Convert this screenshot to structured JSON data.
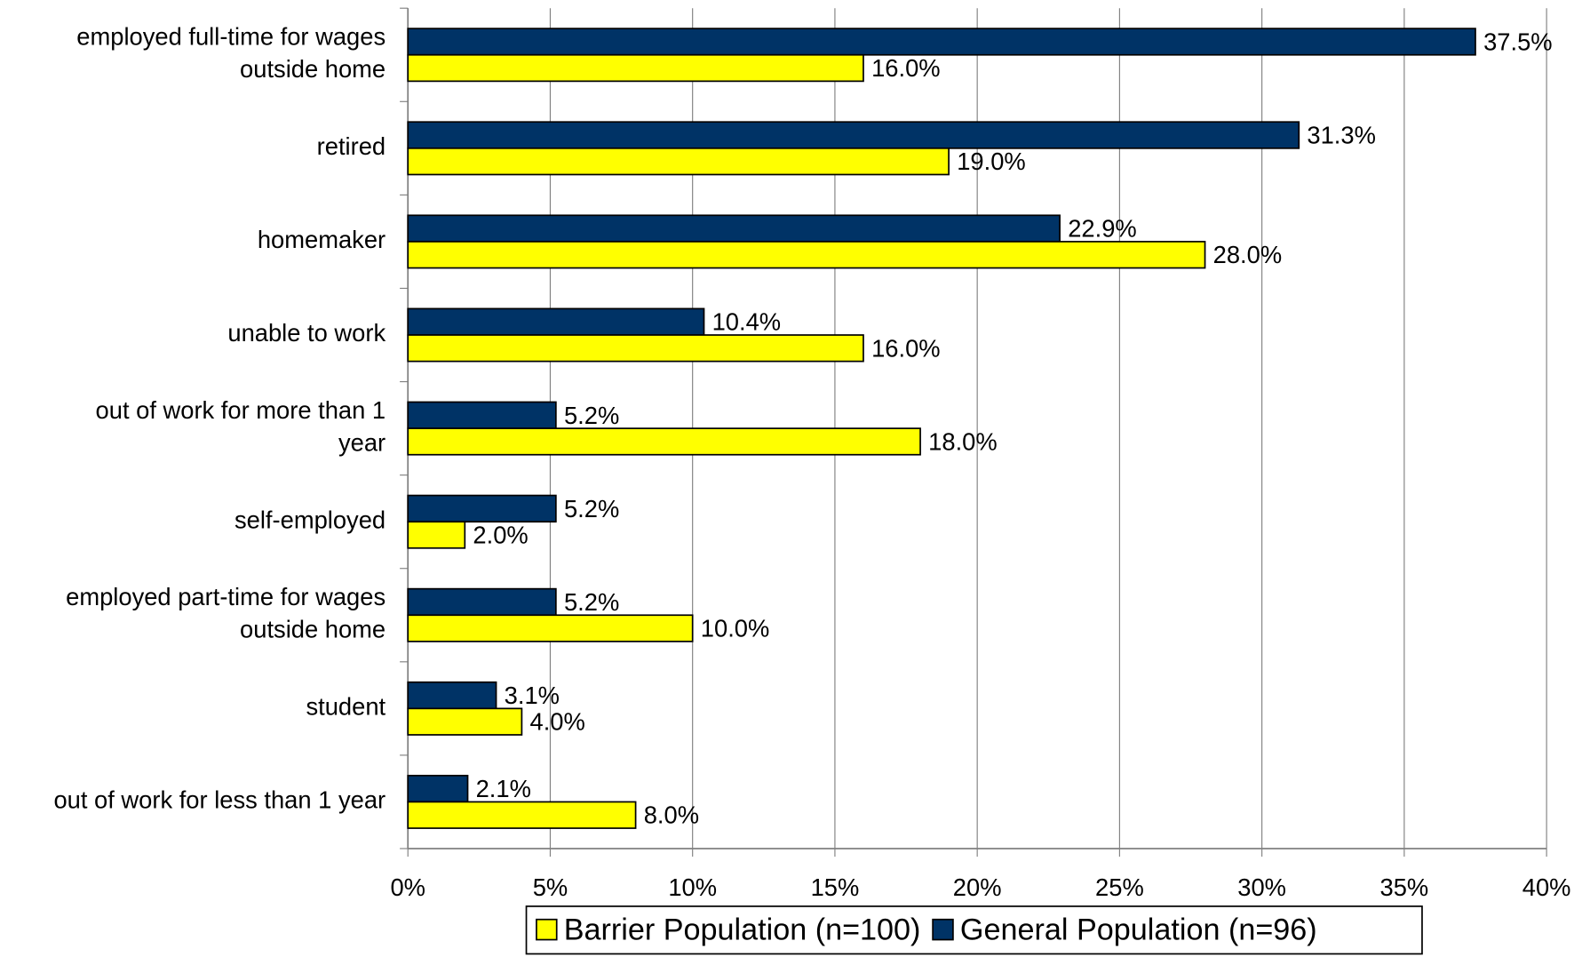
{
  "chart_data": {
    "type": "bar",
    "orientation": "horizontal",
    "categories": [
      "employed full-time for wages\noutside home",
      "retired",
      "homemaker",
      "unable to work",
      "out of work for more than 1\nyear",
      "self-employed",
      "employed part-time for wages\noutside home",
      "student",
      "out of work for less than 1 year"
    ],
    "series": [
      {
        "name": "Barrier Population (n=100)",
        "color": "#ffff00",
        "values": [
          16.0,
          19.0,
          28.0,
          16.0,
          18.0,
          2.0,
          10.0,
          4.0,
          8.0
        ],
        "value_labels": [
          "16.0%",
          "19.0%",
          "28.0%",
          "16.0%",
          "18.0%",
          "2.0%",
          "10.0%",
          "4.0%",
          "8.0%"
        ]
      },
      {
        "name": "General Population (n=96)",
        "color": "#003366",
        "values": [
          37.5,
          31.3,
          22.9,
          10.4,
          5.2,
          5.2,
          5.2,
          3.1,
          2.1
        ],
        "value_labels": [
          "37.5%",
          "31.3%",
          "22.9%",
          "10.4%",
          "5.2%",
          "5.2%",
          "5.2%",
          "3.1%",
          "2.1%"
        ]
      }
    ],
    "xlim": [
      0,
      40
    ],
    "xticks": [
      {
        "value": 0,
        "label": "0%"
      },
      {
        "value": 5,
        "label": "5%"
      },
      {
        "value": 10,
        "label": "10%"
      },
      {
        "value": 15,
        "label": "15%"
      },
      {
        "value": 20,
        "label": "20%"
      },
      {
        "value": 25,
        "label": "25%"
      },
      {
        "value": 30,
        "label": "30%"
      },
      {
        "value": 35,
        "label": "35%"
      },
      {
        "value": 40,
        "label": "40%"
      }
    ],
    "grid": true,
    "legend": "bottom"
  }
}
